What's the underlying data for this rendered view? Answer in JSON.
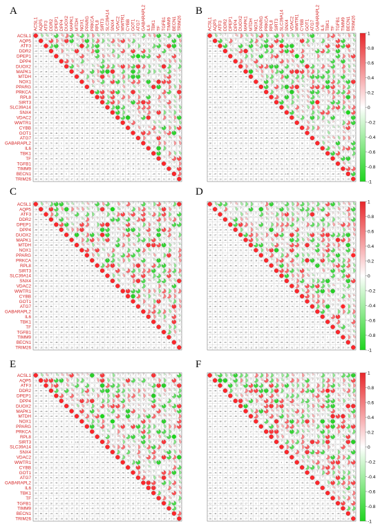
{
  "figure": {
    "panels": [
      {
        "letter": "A",
        "show_colorbar": false,
        "top_labels": true,
        "left_labels": true
      },
      {
        "letter": "B",
        "show_colorbar": true,
        "top_labels": true,
        "left_labels": false
      },
      {
        "letter": "C",
        "show_colorbar": false,
        "top_labels": false,
        "left_labels": true
      },
      {
        "letter": "D",
        "show_colorbar": true,
        "top_labels": false,
        "left_labels": false
      },
      {
        "letter": "E",
        "show_colorbar": false,
        "top_labels": false,
        "left_labels": true
      },
      {
        "letter": "F",
        "show_colorbar": true,
        "top_labels": false,
        "left_labels": false
      }
    ],
    "colorbar_ticks": [
      "1",
      "0.8",
      "0.6",
      "0.4",
      "0.2",
      "0",
      "-0.2",
      "-0.4",
      "-0.6",
      "-0.8",
      "-1"
    ]
  },
  "chart_data": {
    "type": "heatmap",
    "genes": [
      "ACSL1",
      "AQP5",
      "ATF3",
      "DDR2",
      "DPEP1",
      "DPP4",
      "DUOX2",
      "MAPK1",
      "MTDH",
      "NOX1",
      "PPARG",
      "PRKCA",
      "RPL8",
      "SIRT3",
      "SLC39A14",
      "SNX4",
      "VDAC2",
      "WWTR1",
      "CYBB",
      "GOT1",
      "ATG7",
      "GABARAPL2",
      "IL6",
      "TBK1",
      "TF",
      "TGFB1",
      "TIMM9",
      "BECN1",
      "TRIM26"
    ],
    "value_range": [
      -1,
      1
    ],
    "colors": {
      "positive": "#e8262a",
      "negative": "#1ed41e",
      "zero": "#ffffff",
      "grid": "#b0b0b0",
      "label": "#d42020"
    },
    "panel_seeds": [
      11,
      23,
      37,
      53,
      71,
      97
    ]
  }
}
